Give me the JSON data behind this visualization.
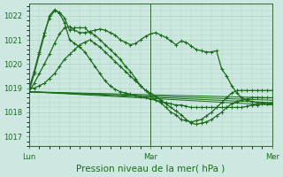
{
  "bg_color": "#cce8e0",
  "grid_color": "#aaccbb",
  "line_color": "#1a6b1a",
  "title": "Pression niveau de la mer( hPa )",
  "ylim": [
    1016.6,
    1022.5
  ],
  "yticks": [
    1017,
    1018,
    1019,
    1020,
    1021,
    1022
  ],
  "xlim": [
    0,
    96
  ],
  "xticks_pos": [
    0,
    48,
    96
  ],
  "xtick_labels": [
    "Lun",
    "Mar",
    "Mer"
  ],
  "vlines": [
    0,
    48,
    96
  ],
  "series": [
    {
      "x": [
        0,
        96
      ],
      "y": [
        1018.85,
        1018.3
      ],
      "marker": null,
      "lw": 0.7
    },
    {
      "x": [
        0,
        96
      ],
      "y": [
        1018.85,
        1018.4
      ],
      "marker": null,
      "lw": 0.7
    },
    {
      "x": [
        0,
        96
      ],
      "y": [
        1018.85,
        1018.5
      ],
      "marker": null,
      "lw": 0.7
    },
    {
      "x": [
        0,
        96
      ],
      "y": [
        1018.85,
        1018.6
      ],
      "marker": null,
      "lw": 0.7
    },
    {
      "x": [
        0,
        2,
        4,
        6,
        8,
        10,
        12,
        14,
        16,
        18,
        20,
        22,
        24,
        26,
        28,
        30,
        32,
        34,
        36,
        38,
        40,
        42,
        44,
        46,
        48,
        50,
        52,
        54,
        56,
        58,
        60,
        62,
        64,
        66,
        68,
        70,
        72,
        74,
        76,
        78,
        80,
        82,
        84,
        86,
        88,
        90,
        92,
        94,
        96
      ],
      "y": [
        1019.0,
        1019.7,
        1020.5,
        1021.3,
        1021.9,
        1022.2,
        1022.15,
        1021.9,
        1021.4,
        1021.5,
        1021.5,
        1021.5,
        1021.3,
        1021.2,
        1021.0,
        1020.8,
        1020.6,
        1020.4,
        1020.2,
        1019.9,
        1019.7,
        1019.4,
        1019.1,
        1018.9,
        1018.7,
        1018.5,
        1018.4,
        1018.2,
        1018.0,
        1017.9,
        1017.7,
        1017.65,
        1017.6,
        1017.65,
        1017.7,
        1017.85,
        1018.0,
        1018.2,
        1018.4,
        1018.6,
        1018.8,
        1018.9,
        1018.9,
        1018.9,
        1018.9,
        1018.9,
        1018.9,
        1018.9,
        1018.9
      ],
      "marker": "+",
      "lw": 0.9
    },
    {
      "x": [
        0,
        2,
        4,
        6,
        8,
        10,
        12,
        14,
        16,
        18,
        20,
        22,
        24,
        26,
        28,
        30,
        32,
        34,
        36,
        38,
        40,
        42,
        44,
        46,
        48,
        50,
        52,
        54,
        56,
        58,
        60,
        62,
        64,
        66,
        68,
        70,
        72,
        74,
        76,
        78,
        80,
        82,
        84,
        86,
        88,
        90,
        92,
        94,
        96
      ],
      "y": [
        1018.85,
        1019.6,
        1020.4,
        1021.2,
        1022.0,
        1022.25,
        1022.1,
        1021.7,
        1021.0,
        1020.85,
        1020.7,
        1020.5,
        1020.2,
        1019.9,
        1019.6,
        1019.3,
        1019.1,
        1018.95,
        1018.85,
        1018.8,
        1018.75,
        1018.7,
        1018.65,
        1018.6,
        1018.55,
        1018.5,
        1018.45,
        1018.4,
        1018.35,
        1018.3,
        1018.3,
        1018.25,
        1018.2,
        1018.2,
        1018.2,
        1018.2,
        1018.2,
        1018.2,
        1018.2,
        1018.2,
        1018.2,
        1018.2,
        1018.2,
        1018.25,
        1018.3,
        1018.3,
        1018.35,
        1018.35,
        1018.4
      ],
      "marker": "+",
      "lw": 0.9
    },
    {
      "x": [
        0,
        2,
        4,
        6,
        8,
        10,
        12,
        14,
        16,
        18,
        20,
        22,
        24,
        26,
        28,
        30,
        32,
        34,
        36,
        38,
        40,
        42,
        44,
        46,
        48,
        50,
        52,
        54,
        56,
        58,
        60,
        62,
        64,
        66,
        68,
        70,
        72,
        74,
        76,
        78,
        80,
        82,
        84,
        86,
        88,
        90,
        92,
        94,
        96
      ],
      "y": [
        1018.85,
        1019.2,
        1019.6,
        1020.0,
        1020.4,
        1020.85,
        1021.25,
        1021.5,
        1021.55,
        1021.4,
        1021.3,
        1021.3,
        1021.35,
        1021.4,
        1021.45,
        1021.4,
        1021.3,
        1021.2,
        1021.0,
        1020.9,
        1020.8,
        1020.85,
        1021.0,
        1021.15,
        1021.25,
        1021.3,
        1021.2,
        1021.1,
        1020.95,
        1020.8,
        1020.95,
        1020.9,
        1020.75,
        1020.6,
        1020.55,
        1020.5,
        1020.5,
        1020.55,
        1019.8,
        1019.5,
        1019.1,
        1018.8,
        1018.6,
        1018.5,
        1018.45,
        1018.4,
        1018.4,
        1018.35,
        1018.35
      ],
      "marker": "+",
      "lw": 0.9
    },
    {
      "x": [
        0,
        2,
        4,
        6,
        8,
        10,
        12,
        14,
        16,
        18,
        20,
        22,
        24,
        26,
        28,
        30,
        32,
        34,
        36,
        38,
        40,
        42,
        44,
        46,
        48,
        50,
        52,
        54,
        56,
        58,
        60,
        62,
        64,
        66,
        68,
        70,
        72,
        74,
        76,
        78,
        80,
        82,
        84,
        86,
        88,
        90,
        92,
        94,
        96
      ],
      "y": [
        1019.0,
        1019.0,
        1019.1,
        1019.2,
        1019.4,
        1019.6,
        1019.9,
        1020.2,
        1020.4,
        1020.6,
        1020.8,
        1020.9,
        1021.0,
        1020.85,
        1020.7,
        1020.5,
        1020.3,
        1020.1,
        1019.9,
        1019.7,
        1019.5,
        1019.3,
        1019.1,
        1018.9,
        1018.8,
        1018.65,
        1018.5,
        1018.35,
        1018.2,
        1018.05,
        1017.9,
        1017.7,
        1017.55,
        1017.5,
        1017.55,
        1017.6,
        1017.7,
        1017.85,
        1018.0,
        1018.2,
        1018.35,
        1018.45,
        1018.5,
        1018.55,
        1018.6,
        1018.6,
        1018.6,
        1018.6,
        1018.6
      ],
      "marker": "+",
      "lw": 0.9
    }
  ],
  "marker_size": 2.5,
  "tick_label_color": "#1a6b1a",
  "tick_label_size": 6,
  "title_size": 7.5,
  "spine_color": "#336633"
}
